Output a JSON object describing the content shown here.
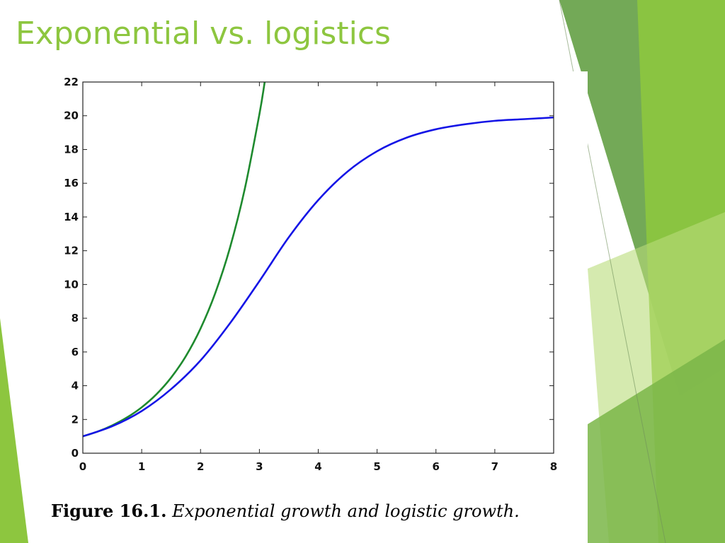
{
  "slide": {
    "title": "Exponential vs. logistics",
    "accent_color": "#8dc63f"
  },
  "figure_caption": {
    "label": "Figure 16.1.",
    "text": "Exponential growth and logistic growth."
  },
  "chart_data": {
    "type": "line",
    "title": "",
    "xlabel": "",
    "ylabel": "",
    "xlim": [
      0,
      8
    ],
    "ylim": [
      0,
      22
    ],
    "xticks": [
      0,
      1,
      2,
      3,
      4,
      5,
      6,
      7,
      8
    ],
    "yticks": [
      0,
      2,
      4,
      6,
      8,
      10,
      12,
      14,
      16,
      18,
      20,
      22
    ],
    "grid": false,
    "legend": "none",
    "series": [
      {
        "color": "#1e8a2e",
        "x": [
          0,
          0.25,
          0.5,
          0.75,
          1,
          1.25,
          1.5,
          1.75,
          2,
          2.25,
          2.5,
          2.75,
          3,
          3.09
        ],
        "y": [
          1.0,
          1.28,
          1.65,
          2.12,
          2.72,
          3.49,
          4.48,
          5.75,
          7.39,
          9.49,
          12.18,
          15.64,
          20.09,
          22.0
        ]
      },
      {
        "color": "#1414e6",
        "x": [
          0,
          0.5,
          1,
          1.5,
          2,
          2.5,
          3,
          3.5,
          4,
          4.5,
          5,
          5.5,
          6,
          6.5,
          7,
          7.5,
          8
        ],
        "y": [
          1.0,
          1.6,
          2.5,
          3.8,
          5.5,
          7.7,
          10.2,
          12.8,
          15.0,
          16.7,
          17.9,
          18.7,
          19.2,
          19.5,
          19.7,
          19.8,
          19.9
        ]
      }
    ]
  }
}
